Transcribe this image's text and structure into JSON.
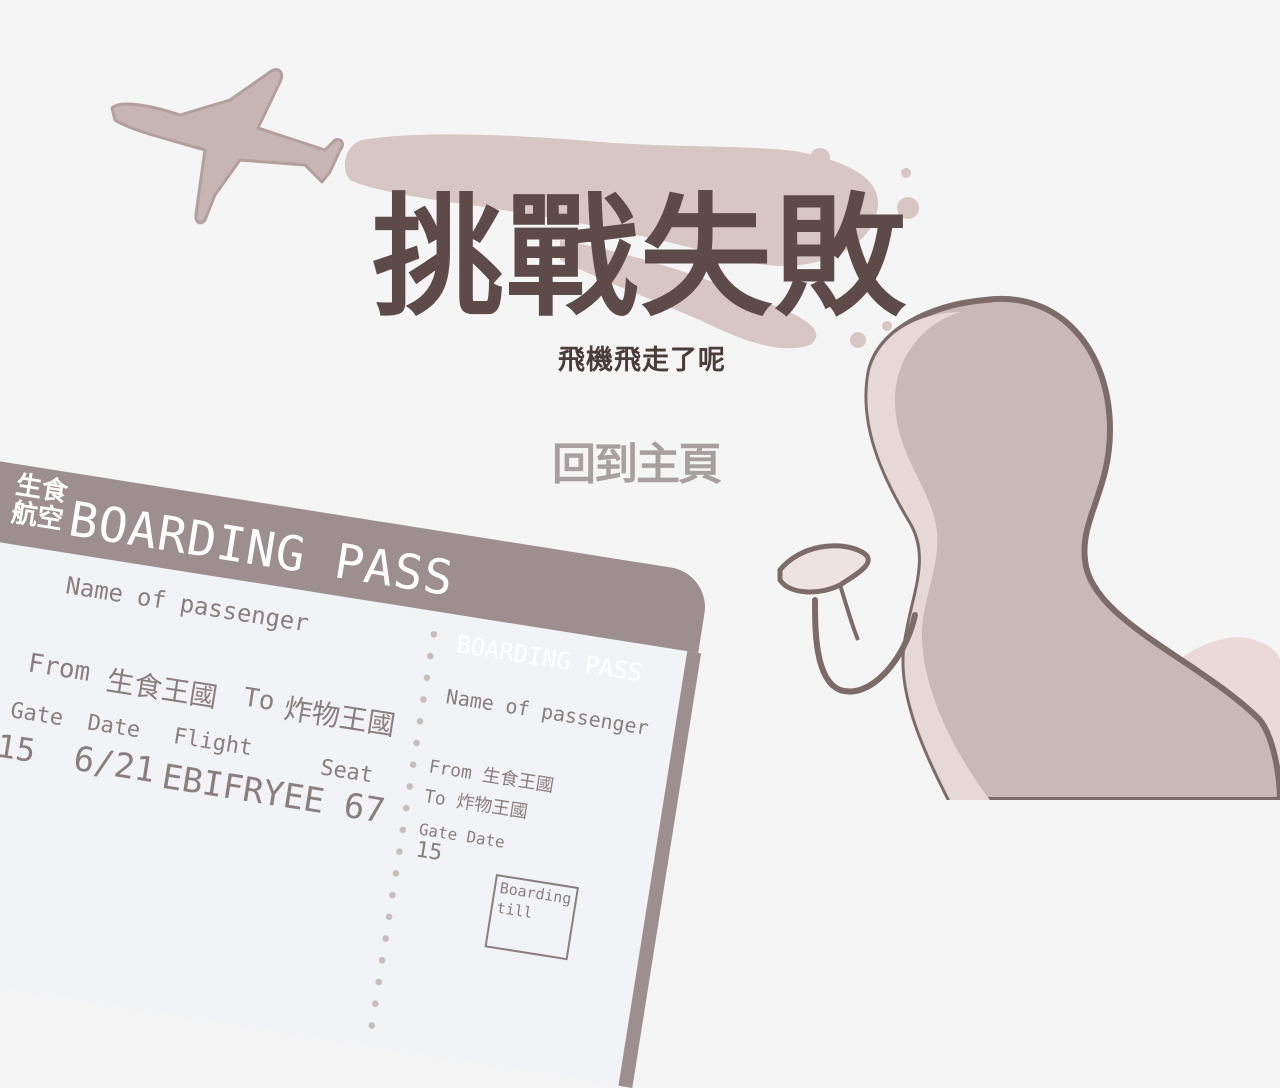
{
  "title": "挑戰失敗",
  "subtitle": "飛機飛走了呢",
  "home_button": "回到主頁",
  "ticket": {
    "airline_top": "生食",
    "airline_bottom": "航空",
    "header": "BOARDING PASS",
    "name_label": "Name of passenger",
    "from_label": "From",
    "from_value": "生食王國",
    "to_label": "To",
    "to_value": "炸物王國",
    "gate_label": "Gate",
    "gate_value": "15",
    "date_label": "Date",
    "date_value": "6/21",
    "flight_label": "Flight",
    "flight_value": "EBIFRYEE 67",
    "seat_label": "Seat",
    "stub_header": "BOARDING PASS",
    "stub_name_label": "Name of passenger",
    "stub_from": "From 生食王國",
    "stub_to": "To 炸物王國",
    "stub_gate_label": "Gate",
    "stub_date_label": "Date",
    "stub_gate_value": "15",
    "boarding_box_line1": "Boarding",
    "boarding_box_line2": "till"
  },
  "colors": {
    "background": "#f5f5f5",
    "title_text": "#5e4a49",
    "contrail": "#d8c6c4",
    "plane": "#c7b5b3",
    "ticket_header": "#9d8f8f",
    "character": "#c8b8b8",
    "outline": "#7d6b69"
  },
  "icons": [
    "airplane-icon",
    "contrail-cloud",
    "character-back",
    "barcode-icon"
  ]
}
